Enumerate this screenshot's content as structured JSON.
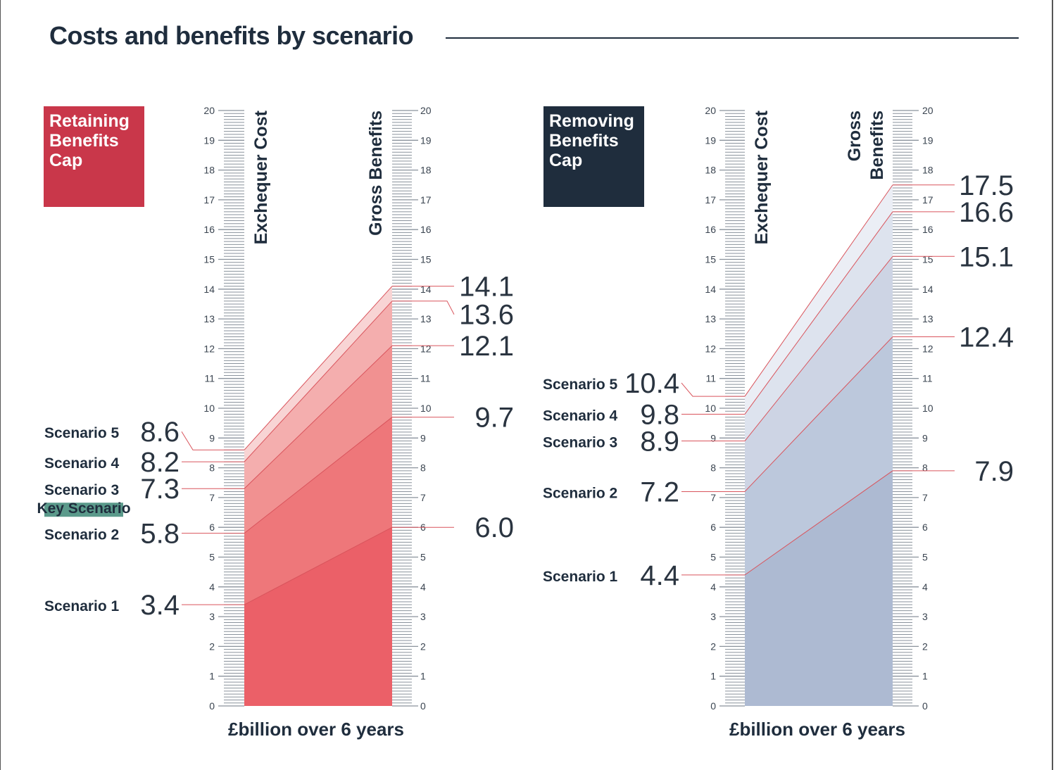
{
  "title": "Costs and benefits by scenario",
  "chart_data": [
    {
      "type": "slope-area",
      "panel_label": [
        "Retaining",
        "Benefits",
        "Cap"
      ],
      "panel_color": "#c9374a",
      "left_axis_title": "Exchequer Cost",
      "right_axis_title": [
        "Gross Benefits"
      ],
      "xlabel": "£billion over 6 years",
      "ylim": [
        0,
        20
      ],
      "ticks": [
        0,
        1,
        2,
        3,
        4,
        5,
        6,
        7,
        8,
        9,
        10,
        11,
        12,
        13,
        14,
        15,
        16,
        17,
        18,
        19,
        20
      ],
      "key_scenario_badge": "Key Scenario",
      "key_scenario_index": 2,
      "fill_colors": [
        "#eb6068",
        "#ee777a",
        "#f19191",
        "#f4aeae",
        "#f8d4d4"
      ],
      "series": [
        {
          "name": "Scenario 1",
          "exchequer_cost": 3.4,
          "gross_benefits": 6.0,
          "cost_label": "3.4",
          "benefit_label": "6.0"
        },
        {
          "name": "Scenario 2",
          "exchequer_cost": 5.8,
          "gross_benefits": 9.7,
          "cost_label": "5.8",
          "benefit_label": "9.7"
        },
        {
          "name": "Scenario 3",
          "exchequer_cost": 7.3,
          "gross_benefits": 12.1,
          "cost_label": "7.3",
          "benefit_label": "12.1"
        },
        {
          "name": "Scenario 4",
          "exchequer_cost": 8.2,
          "gross_benefits": 13.6,
          "cost_label": "8.2",
          "benefit_label": "13.6"
        },
        {
          "name": "Scenario 5",
          "exchequer_cost": 8.6,
          "gross_benefits": 14.1,
          "cost_label": "8.6",
          "benefit_label": "14.1"
        }
      ]
    },
    {
      "type": "slope-area",
      "panel_label": [
        "Removing",
        "Benefits",
        "Cap"
      ],
      "panel_color": "#1f2d3d",
      "left_axis_title": "Exchequer Cost",
      "right_axis_title": [
        "Gross",
        "Benefits"
      ],
      "xlabel": "£billion over 6 years",
      "ylim": [
        0,
        20
      ],
      "ticks": [
        0,
        1,
        2,
        3,
        4,
        5,
        6,
        7,
        8,
        9,
        10,
        11,
        12,
        13,
        14,
        15,
        16,
        17,
        18,
        19,
        20
      ],
      "fill_colors": [
        "#adbad2",
        "#bcc8dc",
        "#cdd4e4",
        "#dde3ee",
        "#ebeef5"
      ],
      "series": [
        {
          "name": "Scenario 1",
          "exchequer_cost": 4.4,
          "gross_benefits": 7.9,
          "cost_label": "4.4",
          "benefit_label": "7.9"
        },
        {
          "name": "Scenario 2",
          "exchequer_cost": 7.2,
          "gross_benefits": 12.4,
          "cost_label": "7.2",
          "benefit_label": "12.4"
        },
        {
          "name": "Scenario 3",
          "exchequer_cost": 8.9,
          "gross_benefits": 15.1,
          "cost_label": "8.9",
          "benefit_label": "15.1"
        },
        {
          "name": "Scenario 4",
          "exchequer_cost": 9.8,
          "gross_benefits": 16.6,
          "cost_label": "9.8",
          "benefit_label": "16.6"
        },
        {
          "name": "Scenario 5",
          "exchequer_cost": 10.4,
          "gross_benefits": 17.5,
          "cost_label": "10.4",
          "benefit_label": "17.5"
        }
      ]
    }
  ],
  "line_color": "#d9545c",
  "ruler_color": "#8a929c",
  "badge_color": "#5b9a8b"
}
